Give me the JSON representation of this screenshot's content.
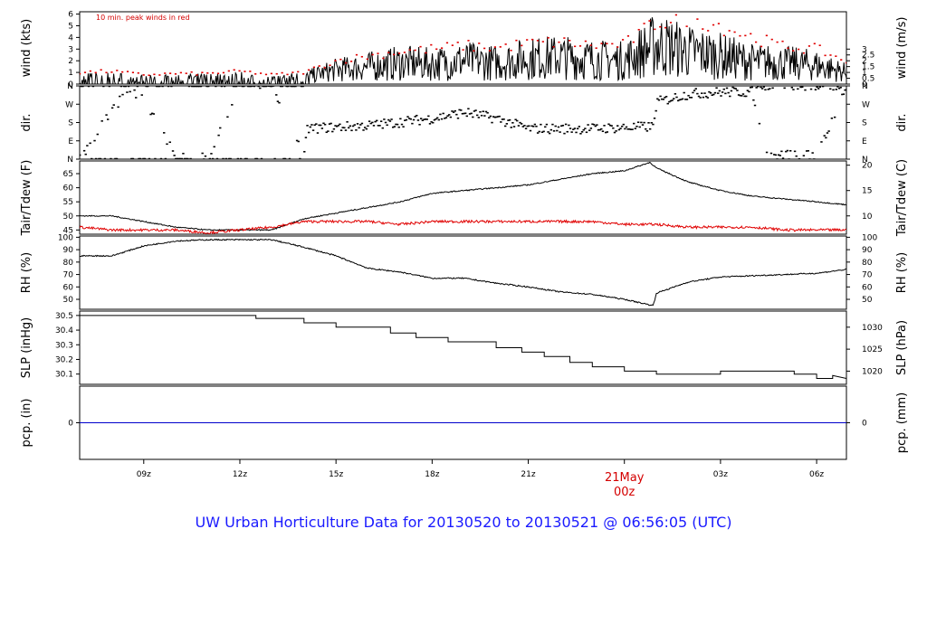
{
  "title": "UW Urban Horticulture Data for 20130520  to  20130521 @ 06:56:05  (UTC)",
  "colors": {
    "primary_line": "#000000",
    "peak_winds": "#e00000",
    "dewpoint": "#e00000",
    "precip": "#0000cc",
    "title": "#1a1aff",
    "date_marker": "#d40000"
  },
  "x_axis": {
    "tick_labels": [
      "09z",
      "12z",
      "15z",
      "18z",
      "21z",
      "00z",
      "03z",
      "06z"
    ],
    "tick_hours": [
      9,
      12,
      15,
      18,
      21,
      24,
      27,
      30
    ],
    "range_hours": [
      7.0,
      30.93
    ],
    "date_label": "21May",
    "date_time_label": "00z"
  },
  "panels": [
    {
      "id": "wind",
      "left_label": "wind (kts)",
      "right_label": "wind (m/s)",
      "note": "10 min. peak winds in red",
      "left_ticks": [
        "0",
        "1",
        "2",
        "3",
        "4",
        "5",
        "6"
      ],
      "left_values": [
        0,
        1,
        2,
        3,
        4,
        5,
        6
      ],
      "right_ticks": [
        "0",
        "0.5",
        "1",
        "1.5",
        "2",
        "2.5",
        "3"
      ],
      "right_values": [
        0,
        0.5,
        1,
        1.5,
        2,
        2.5,
        3
      ],
      "ylim": [
        0,
        6.2
      ]
    },
    {
      "id": "dir",
      "left_label": "dir.",
      "right_label": "dir.",
      "left_ticks": [
        "N",
        "E",
        "S",
        "W",
        "N"
      ],
      "right_ticks": [
        "N",
        "E",
        "S",
        "W",
        "N"
      ],
      "values": [
        0,
        90,
        180,
        270,
        360
      ],
      "ylim": [
        0,
        360
      ]
    },
    {
      "id": "temp",
      "left_label": "Tair/Tdew (F)",
      "right_label": "Tair/Tdew (C)",
      "left_ticks": [
        "45",
        "50",
        "55",
        "60",
        "65"
      ],
      "left_values": [
        45,
        50,
        55,
        60,
        65
      ],
      "right_ticks": [
        "10",
        "15",
        "20"
      ],
      "right_values": [
        50,
        59,
        68
      ],
      "ylim": [
        43.5,
        69.5
      ]
    },
    {
      "id": "rh",
      "left_label": "RH (%)",
      "right_label": "RH (%)",
      "left_ticks": [
        "50",
        "60",
        "70",
        "80",
        "90",
        "100"
      ],
      "left_values": [
        50,
        60,
        70,
        80,
        90,
        100
      ],
      "right_ticks": [
        "50",
        "60",
        "70",
        "80",
        "90",
        "100"
      ],
      "right_values": [
        50,
        60,
        70,
        80,
        90,
        100
      ],
      "ylim": [
        42,
        101
      ]
    },
    {
      "id": "slp",
      "left_label": "SLP (inHg)",
      "right_label": "SLP (hPa)",
      "left_ticks": [
        "30.1",
        "30.2",
        "30.3",
        "30.4",
        "30.5"
      ],
      "left_values": [
        30.1,
        30.2,
        30.3,
        30.4,
        30.5
      ],
      "right_ticks": [
        "1020",
        "1025",
        "1030"
      ],
      "right_values": [
        30.12,
        30.27,
        30.42
      ],
      "ylim": [
        30.03,
        30.53
      ]
    },
    {
      "id": "pcp",
      "left_label": "pcp. (in)",
      "right_label": "pcp. (mm)",
      "left_ticks": [
        "0"
      ],
      "left_values": [
        0
      ],
      "right_ticks": [
        "0"
      ],
      "right_values": [
        0
      ],
      "ylim": [
        -1,
        1
      ]
    }
  ],
  "chart_data": {
    "type": "line",
    "x_units": "hour UTC (20130520, >24 = 20130521)",
    "series": [
      {
        "panel": "wind",
        "x": [
          7,
          8,
          9,
          10,
          11,
          12,
          13,
          14,
          15,
          16,
          17,
          18,
          19,
          20,
          21,
          22,
          23,
          24,
          25,
          26,
          27,
          28,
          29,
          30,
          30.9
        ],
        "values": [
          0.5,
          0.6,
          0.4,
          0.5,
          0.5,
          0.6,
          0.4,
          0.6,
          1.2,
          1.5,
          1.8,
          1.7,
          2.0,
          1.8,
          2.2,
          2.3,
          2.1,
          2.0,
          3.4,
          2.8,
          2.4,
          1.9,
          1.8,
          1.6,
          1.0
        ]
      },
      {
        "panel": "wind",
        "x": [
          7,
          8,
          9,
          10,
          11,
          12,
          13,
          14,
          15,
          16,
          17,
          18,
          19,
          20,
          21,
          22,
          23,
          24,
          25,
          26,
          27,
          28,
          29,
          30,
          30.9
        ],
        "values": [
          1.0,
          1.1,
          0.8,
          0.9,
          0.9,
          1.1,
          0.8,
          1.0,
          2.0,
          2.4,
          2.8,
          3.0,
          3.3,
          3.1,
          3.5,
          3.6,
          3.3,
          3.4,
          5.3,
          5.8,
          5.0,
          4.0,
          3.2,
          3.0,
          2.0
        ]
      },
      {
        "panel": "dir",
        "x": [
          7,
          8.5,
          9,
          10,
          11,
          12,
          13,
          14,
          14.1,
          16,
          18,
          19,
          20,
          21,
          22,
          23,
          24,
          24.9,
          25,
          26,
          27,
          28,
          28.5,
          29,
          30,
          30.9
        ],
        "values": [
          5,
          350,
          300,
          5,
          5,
          355,
          355,
          0,
          150,
          165,
          200,
          230,
          200,
          150,
          150,
          150,
          155,
          160,
          280,
          320,
          330,
          330,
          10,
          20,
          15,
          350
        ]
      },
      {
        "name": "Tair",
        "panel": "temp",
        "x": [
          7,
          8,
          9,
          10,
          11,
          12,
          13,
          14,
          15,
          16,
          17,
          18,
          19,
          20,
          21,
          22,
          23,
          24,
          24.8,
          25,
          26,
          27,
          28,
          29,
          30,
          30.9
        ],
        "values": [
          50,
          50,
          48,
          46,
          45,
          45,
          45,
          49,
          51,
          53,
          55,
          58,
          59,
          60,
          61,
          63,
          65,
          66,
          69,
          67,
          62,
          59,
          57,
          56,
          55,
          54
        ]
      },
      {
        "name": "Tdew",
        "panel": "temp",
        "x": [
          7,
          8,
          9,
          10,
          11,
          12,
          13,
          14,
          15,
          16,
          17,
          18,
          19,
          20,
          21,
          22,
          23,
          24,
          25,
          26,
          27,
          28,
          29,
          30,
          30.9
        ],
        "values": [
          46,
          45,
          45,
          45,
          44,
          45,
          46,
          48,
          48,
          48,
          47,
          48,
          48,
          48,
          48,
          48,
          48,
          47,
          47,
          46,
          46,
          46,
          45,
          45,
          45
        ]
      },
      {
        "panel": "rh",
        "x": [
          7,
          8,
          9,
          10,
          11,
          12,
          13,
          14,
          15,
          16,
          17,
          18,
          19,
          20,
          21,
          22,
          23,
          24,
          24.9,
          25,
          26,
          27,
          28,
          29,
          30,
          30.9
        ],
        "values": [
          85,
          85,
          93,
          97,
          98,
          98,
          98,
          92,
          85,
          75,
          72,
          67,
          67,
          63,
          60,
          56,
          54,
          50,
          45,
          55,
          64,
          68,
          69,
          70,
          71,
          74
        ]
      },
      {
        "panel": "slp",
        "x": [
          7,
          12.5,
          12.5,
          14,
          14,
          15,
          15,
          16.7,
          16.7,
          17.5,
          17.5,
          18.5,
          18.5,
          20,
          20,
          20.8,
          20.8,
          21.5,
          21.5,
          22.3,
          22.3,
          23,
          23,
          24,
          24,
          25,
          25,
          27,
          27,
          29.3,
          29.3,
          30,
          30,
          30.5,
          30.5,
          30.93
        ],
        "values": [
          30.5,
          30.5,
          30.48,
          30.48,
          30.45,
          30.45,
          30.42,
          30.42,
          30.38,
          30.38,
          30.35,
          30.35,
          30.32,
          30.32,
          30.28,
          30.28,
          30.25,
          30.25,
          30.22,
          30.22,
          30.18,
          30.18,
          30.15,
          30.15,
          30.12,
          30.12,
          30.1,
          30.1,
          30.12,
          30.12,
          30.1,
          30.1,
          30.07,
          30.07,
          30.09,
          30.07
        ]
      },
      {
        "panel": "pcp",
        "x": [
          7,
          30.93
        ],
        "values": [
          0,
          0
        ]
      }
    ]
  }
}
